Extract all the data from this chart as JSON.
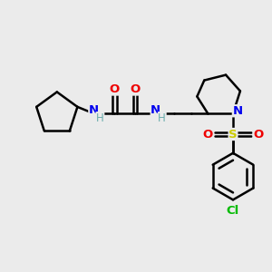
{
  "background_color": "#ebebeb",
  "bond_color": "#000000",
  "atom_colors": {
    "N": "#0000ee",
    "O": "#ee0000",
    "S": "#cccc00",
    "Cl": "#00bb00",
    "H_label": "#6aacac",
    "C": "#000000"
  },
  "figsize": [
    3.0,
    3.0
  ],
  "dpi": 100
}
